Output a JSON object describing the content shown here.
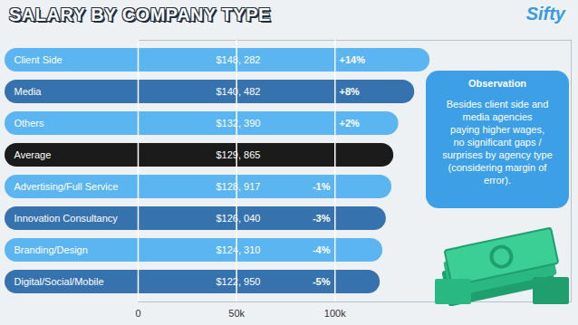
{
  "chart_data": {
    "type": "bar",
    "orientation": "horizontal",
    "title": "SALARY BY COMPANY TYPE",
    "logo": "Sifty",
    "categories": [
      "Client Side",
      "Media",
      "Others",
      "Average",
      "Advertising/Full Service",
      "Innovation Consultancy",
      "Branding/Design",
      "Digital/Social/Mobile"
    ],
    "values": [
      148282,
      140482,
      132390,
      129865,
      128917,
      126040,
      124310,
      122950
    ],
    "value_labels": [
      "$148, 282",
      "$140, 482",
      "$132, 390",
      "$129, 865",
      "$128, 917",
      "$126, 040",
      "$124, 310",
      "$122, 950"
    ],
    "differences": [
      14,
      8,
      2,
      null,
      -1,
      -3,
      -4,
      -5
    ],
    "difference_labels": [
      "+14%",
      "+8%",
      "+2%",
      null,
      "-1%",
      "-3%",
      "-4%",
      "-5%"
    ],
    "colors": [
      "#5bb5f0",
      "#3672ad",
      "#5bb5f0",
      "#1b1b1b",
      "#5bb5f0",
      "#3672ad",
      "#5bb5f0",
      "#3672ad"
    ],
    "data_labels": true,
    "xlim": [
      0,
      220000
    ],
    "xticks": [
      0,
      {
        "value": 50000,
        "label": "50k"
      },
      {
        "value": 100000,
        "label": "100k"
      }
    ],
    "grid": true,
    "annotation": {
      "title": "Observation",
      "lines": [
        "Besides client side and",
        "media agencies",
        "paying higher wages,",
        "no significant gaps /",
        "surprises by agency type",
        "(considering margin of",
        "error)."
      ]
    }
  }
}
